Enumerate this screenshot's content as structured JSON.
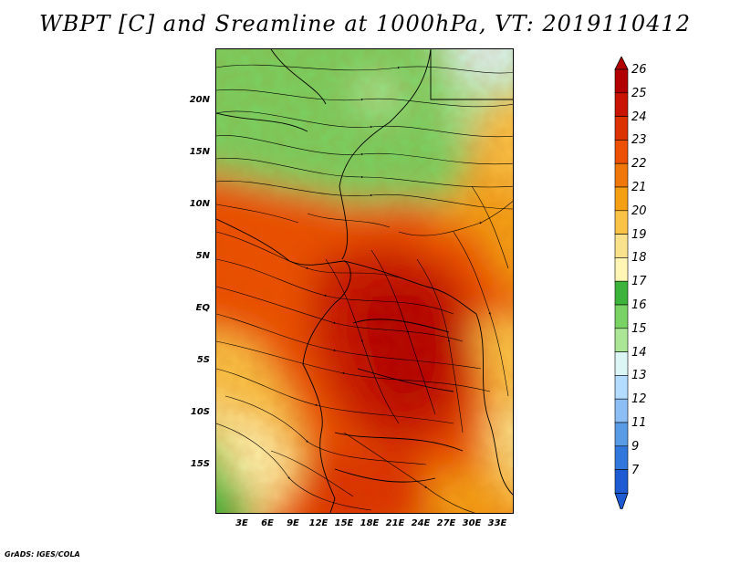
{
  "title": "WBPT [C] and Sreamline at 1000hPa, VT: 2019110412",
  "map": {
    "y_tick_labels": [
      "20N",
      "15N",
      "10N",
      "5N",
      "EQ",
      "5S",
      "10S",
      "15S"
    ],
    "x_tick_labels": [
      "3E",
      "6E",
      "9E",
      "12E",
      "15E",
      "18E",
      "21E",
      "24E",
      "27E",
      "30E",
      "33E"
    ],
    "lon_range": [
      0,
      35
    ],
    "lat_range": [
      -20,
      24
    ]
  },
  "colorbar": {
    "labels": [
      "26",
      "25",
      "24",
      "23",
      "22",
      "21",
      "20",
      "19",
      "18",
      "17",
      "16",
      "15",
      "14",
      "13",
      "12",
      "11",
      "9",
      "7"
    ],
    "colors": [
      "#b20000",
      "#c81400",
      "#dc3200",
      "#eb5005",
      "#f0780a",
      "#f5a014",
      "#fac346",
      "#fae18c",
      "#fff5b4",
      "#3cb43c",
      "#78d264",
      "#aae696",
      "#dcf5f5",
      "#b4dcff",
      "#8cbef5",
      "#5a9be6",
      "#3278dc",
      "#1e5ad2"
    ]
  },
  "credit": "GrADS: IGES/COLA"
}
